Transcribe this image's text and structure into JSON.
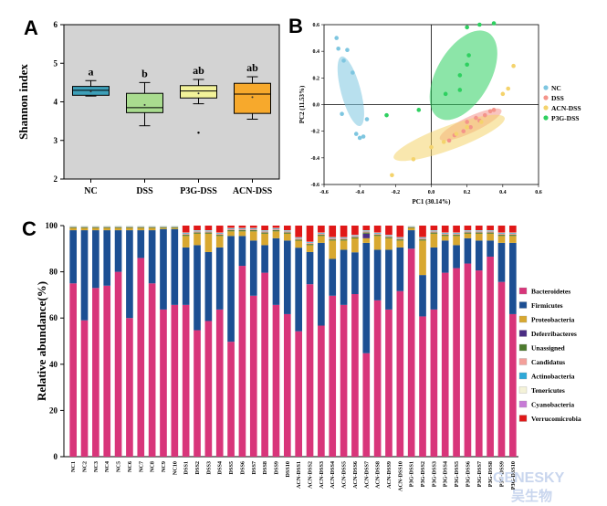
{
  "panels": {
    "a": "A",
    "b": "B",
    "c": "C"
  },
  "watermark": {
    "line1": "GENESKY",
    "line2": "吴生物"
  },
  "chart_data": [
    {
      "type": "box",
      "ylabel": "Shannon index",
      "ylim": [
        2,
        6
      ],
      "yticks": [
        2,
        3,
        4,
        5,
        6
      ],
      "background": "#d3d3d3",
      "groups": [
        {
          "name": "NC",
          "color": "#3d9fb8",
          "min": 4.15,
          "q1": 4.17,
          "median": 4.3,
          "q3": 4.4,
          "max": 4.55,
          "mean": 4.27,
          "outliers": [],
          "sig": "a"
        },
        {
          "name": "DSS",
          "color": "#a9dc8f",
          "min": 3.38,
          "q1": 3.72,
          "median": 3.85,
          "q3": 4.22,
          "max": 4.5,
          "mean": 3.92,
          "outliers": [],
          "sig": "b"
        },
        {
          "name": "P3G-DSS",
          "color": "#f2f29a",
          "min": 3.95,
          "q1": 4.1,
          "median": 4.28,
          "q3": 4.42,
          "max": 4.58,
          "mean": 4.22,
          "outliers": [
            3.2
          ],
          "sig": "ab"
        },
        {
          "name": "ACN-DSS",
          "color": "#f7a92c",
          "min": 3.55,
          "q1": 3.7,
          "median": 4.2,
          "q3": 4.48,
          "max": 4.65,
          "mean": 4.12,
          "outliers": [],
          "sig": "ab"
        }
      ]
    },
    {
      "type": "scatter",
      "xlabel": "PC1 (30.14%)",
      "ylabel": "PC2 (11.53%)",
      "xlim": [
        -0.6,
        0.6
      ],
      "ylim": [
        -0.6,
        0.6
      ],
      "xticks": [
        -0.6,
        -0.4,
        -0.2,
        0.0,
        0.2,
        0.4,
        0.6
      ],
      "yticks": [
        -0.6,
        -0.4,
        -0.2,
        0.0,
        0.2,
        0.4,
        0.6
      ],
      "legend_position": "right",
      "series": [
        {
          "name": "NC",
          "color": "#7ec6e0",
          "ellipse": {
            "cx": -0.45,
            "cy": 0.1,
            "rx": 0.055,
            "ry": 0.27,
            "angle": -15
          },
          "points": [
            [
              -0.53,
              0.5
            ],
            [
              -0.52,
              0.42
            ],
            [
              -0.49,
              0.33
            ],
            [
              -0.47,
              0.41
            ],
            [
              -0.5,
              -0.07
            ],
            [
              -0.42,
              -0.22
            ],
            [
              -0.4,
              -0.25
            ],
            [
              -0.38,
              -0.24
            ],
            [
              -0.36,
              -0.11
            ],
            [
              -0.44,
              0.24
            ]
          ]
        },
        {
          "name": "DSS",
          "color": "#f4948a",
          "ellipse": {
            "cx": 0.22,
            "cy": -0.15,
            "rx": 0.19,
            "ry": 0.06,
            "angle": -25
          },
          "points": [
            [
              0.1,
              -0.27
            ],
            [
              0.13,
              -0.23
            ],
            [
              0.18,
              -0.2
            ],
            [
              0.22,
              -0.17
            ],
            [
              0.27,
              -0.12
            ],
            [
              0.3,
              -0.08
            ],
            [
              0.33,
              -0.05
            ],
            [
              0.35,
              -0.04
            ],
            [
              0.2,
              -0.13
            ],
            [
              0.25,
              -0.1
            ]
          ]
        },
        {
          "name": "ACN-DSS",
          "color": "#f4d36c",
          "ellipse": {
            "cx": 0.1,
            "cy": -0.25,
            "rx": 0.33,
            "ry": 0.09,
            "angle": -20
          },
          "points": [
            [
              -0.22,
              -0.53
            ],
            [
              -0.1,
              -0.41
            ],
            [
              0.0,
              -0.32
            ],
            [
              0.07,
              -0.28
            ],
            [
              0.14,
              -0.22
            ],
            [
              0.2,
              -0.17
            ],
            [
              0.28,
              -0.13
            ],
            [
              0.4,
              0.08
            ],
            [
              0.46,
              0.29
            ],
            [
              0.43,
              0.12
            ]
          ]
        },
        {
          "name": "P3G-DSS",
          "color": "#2ed060",
          "ellipse": {
            "cx": 0.18,
            "cy": 0.22,
            "rx": 0.15,
            "ry": 0.37,
            "angle": 30
          },
          "points": [
            [
              -0.25,
              -0.08
            ],
            [
              -0.07,
              -0.04
            ],
            [
              0.08,
              0.08
            ],
            [
              0.16,
              0.22
            ],
            [
              0.2,
              0.58
            ],
            [
              0.27,
              0.6
            ],
            [
              0.35,
              0.61
            ],
            [
              0.21,
              0.37
            ],
            [
              0.2,
              0.3
            ],
            [
              0.16,
              0.11
            ]
          ]
        }
      ]
    },
    {
      "type": "bar",
      "stacked": true,
      "ylabel": "Relative abundance(%)",
      "ylim": [
        0,
        100
      ],
      "yticks": [
        0,
        20,
        40,
        60,
        80,
        100
      ],
      "categories": [
        "NC1",
        "NC2",
        "NC3",
        "NC4",
        "NC5",
        "NC6",
        "NC7",
        "NC8",
        "NC9",
        "NC10",
        "DSS1",
        "DSS2",
        "DSS3",
        "DSS4",
        "DSS5",
        "DSS6",
        "DSS7",
        "DSS8",
        "DSS9",
        "DSS10",
        "ACN-DSS1",
        "ACN-DSS2",
        "ACN-DSS3",
        "ACN-DSS4",
        "ACN-DSS5",
        "ACN-DSS6",
        "ACN-DSS7",
        "ACN-DSS8",
        "ACN-DSS9",
        "ACN-DSS10",
        "P3G-DSS1",
        "P3G-DSS2",
        "P3G-DSS3",
        "P3G-DSS4",
        "P3G-DSS5",
        "P3G-DSS6",
        "P3G-DSS7",
        "P3G-DSS8",
        "P3G-DSS9",
        "P3G-DSS10"
      ],
      "legend_position": "right",
      "series": [
        {
          "name": "Bacteroidetes",
          "color": "#d8357a",
          "values": [
            75,
            59,
            73,
            74,
            80,
            60,
            86,
            75,
            64,
            66,
            66,
            55,
            59,
            64,
            50,
            83,
            70,
            80,
            66,
            62,
            54,
            75,
            57,
            70,
            66,
            70,
            45,
            68,
            64,
            72,
            90,
            61,
            64,
            80,
            82,
            84,
            81,
            87,
            76,
            62
          ]
        },
        {
          "name": "Firmicutes",
          "color": "#1c4f93",
          "values": [
            23,
            39,
            25,
            24,
            18,
            38,
            12,
            23,
            35,
            33,
            25,
            37,
            30,
            27,
            46,
            13,
            24,
            12,
            29,
            32,
            36,
            14,
            36,
            16,
            24,
            18,
            48,
            22,
            26,
            19,
            8,
            18,
            27,
            14,
            10,
            11,
            13,
            7,
            17,
            31
          ]
        },
        {
          "name": "Proteobacteria",
          "color": "#d8a830",
          "values": [
            1,
            1,
            1,
            1,
            1,
            1,
            1,
            1,
            0.5,
            0.5,
            5,
            5,
            8,
            5,
            2,
            2,
            4,
            5,
            3,
            3,
            3,
            3,
            3,
            8,
            4,
            6,
            2,
            6,
            5,
            3,
            1,
            15,
            6,
            2,
            4,
            2,
            3,
            3,
            3,
            3
          ]
        },
        {
          "name": "Deferribacteres",
          "color": "#4b2d83",
          "values": [
            0,
            0,
            0,
            0,
            0,
            0,
            0,
            0,
            0,
            0,
            0,
            0,
            0,
            0,
            0,
            0,
            0,
            0,
            0,
            0,
            0,
            0,
            0,
            0,
            0,
            0,
            2,
            0,
            0,
            0,
            0,
            0,
            0,
            0,
            0,
            0,
            0,
            0,
            0,
            0
          ]
        },
        {
          "name": "Unassigned",
          "color": "#4c7a2e",
          "values": [
            0.3,
            0.3,
            0.3,
            0.3,
            0.3,
            0.3,
            0.3,
            0.3,
            0.3,
            0.3,
            0.5,
            0.5,
            0.5,
            0.5,
            0.5,
            0.5,
            0.5,
            0.5,
            0.5,
            0.5,
            0.5,
            0.5,
            0.5,
            0.5,
            0.5,
            0.5,
            0.5,
            0.5,
            0.5,
            0.5,
            0.3,
            0.5,
            0.5,
            0.5,
            0.5,
            0.5,
            0.5,
            0.5,
            0.5,
            0.5
          ]
        },
        {
          "name": "Candidatus",
          "color": "#f4a09a",
          "values": [
            0.2,
            0.2,
            0.2,
            0.2,
            0.2,
            0.2,
            0.2,
            0.2,
            0.2,
            0.2,
            0.5,
            0.5,
            0.5,
            0.5,
            0.5,
            0.5,
            0.5,
            0.5,
            0.5,
            0.5,
            0.5,
            0.5,
            0.5,
            0.5,
            0.5,
            0.5,
            0.5,
            0.5,
            0.5,
            0.5,
            0.2,
            0.5,
            0.5,
            0.5,
            0.5,
            0.5,
            0.5,
            0.5,
            0.5,
            0.5
          ]
        },
        {
          "name": "Actinobacteria",
          "color": "#2ea8d8",
          "values": [
            0.2,
            0.2,
            0.2,
            0.2,
            0.2,
            0.2,
            0.2,
            0.2,
            0.2,
            0.2,
            0.3,
            0.3,
            0.3,
            0.3,
            0.3,
            0.3,
            0.3,
            0.3,
            0.3,
            0.3,
            0.3,
            0.3,
            0.3,
            0.3,
            0.3,
            0.3,
            0.3,
            0.3,
            0.3,
            0.3,
            0.2,
            0.3,
            0.3,
            0.3,
            0.3,
            0.3,
            0.3,
            0.3,
            0.3,
            0.3
          ]
        },
        {
          "name": "Tenericutes",
          "color": "#f4f2d8",
          "values": [
            0.3,
            0.3,
            0.3,
            0.3,
            0.3,
            0.3,
            0.3,
            0.3,
            0.3,
            0.3,
            0.2,
            0.2,
            0.2,
            0.2,
            0.2,
            0.2,
            0.2,
            0.2,
            0.2,
            0.2,
            0.2,
            0.2,
            0.2,
            0.2,
            0.2,
            0.2,
            0.2,
            0.2,
            0.2,
            0.2,
            0.3,
            0.2,
            0.2,
            0.2,
            0.2,
            0.2,
            0.2,
            0.2,
            0.2,
            0.2
          ]
        },
        {
          "name": "Cyanobacteria",
          "color": "#c77bd6",
          "values": [
            0,
            0,
            0,
            0,
            0,
            0,
            0,
            0,
            0,
            0,
            0,
            0,
            0,
            0,
            0,
            0,
            0,
            0,
            0,
            0,
            0,
            0,
            0,
            0,
            0,
            0,
            0,
            0,
            0,
            0,
            0,
            0,
            0,
            0,
            0,
            0,
            0,
            0,
            0,
            0
          ]
        },
        {
          "name": "Verrucomicrobia",
          "color": "#e01818",
          "values": [
            0,
            0,
            0,
            0,
            0,
            0,
            0,
            0,
            0,
            0,
            3,
            2,
            2,
            3,
            1,
            1,
            1,
            2,
            1,
            2,
            5,
            7,
            3,
            5,
            5,
            4,
            2,
            3,
            4,
            5,
            0,
            5,
            2,
            3,
            3,
            2,
            2,
            2,
            3,
            3
          ]
        }
      ]
    }
  ]
}
